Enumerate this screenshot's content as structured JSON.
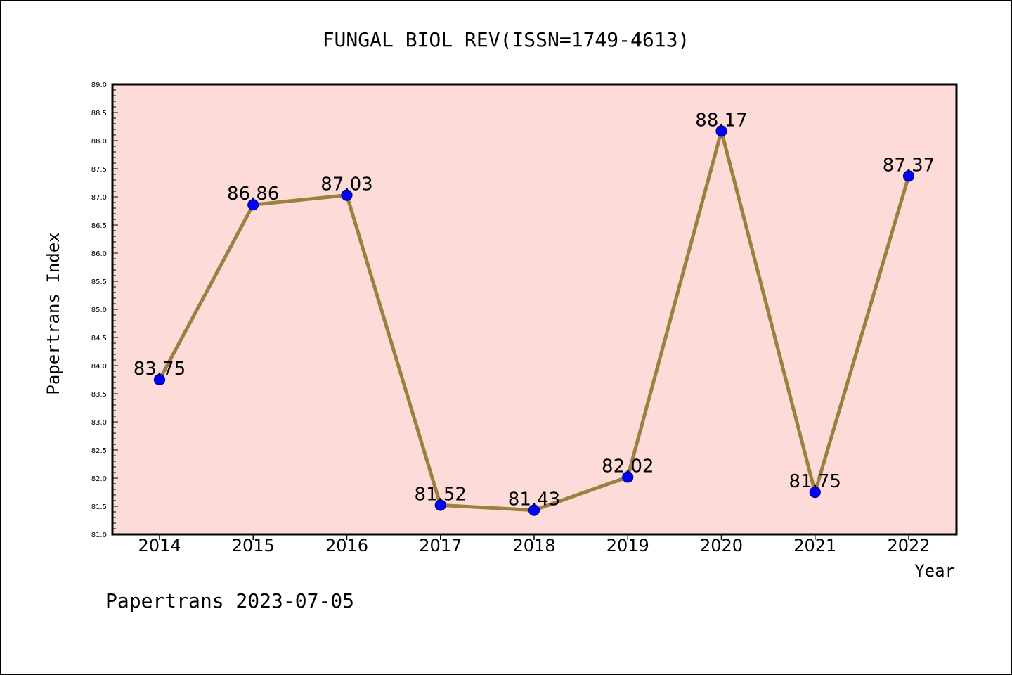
{
  "chart_data": {
    "type": "line",
    "title": "FUNGAL BIOL REV(ISSN=1749-4613)",
    "xlabel": "Year",
    "ylabel": "Papertrans Index",
    "categories": [
      "2014",
      "2015",
      "2016",
      "2017",
      "2018",
      "2019",
      "2020",
      "2021",
      "2022"
    ],
    "values": [
      83.75,
      86.86,
      87.03,
      81.52,
      81.43,
      82.02,
      88.17,
      81.75,
      87.37
    ],
    "data_labels": [
      "83.75",
      "86.86",
      "87.03",
      "81.52",
      "81.43",
      "82.02",
      "88.17",
      "81.75",
      "87.37"
    ],
    "ylim": [
      81.0,
      89.0
    ],
    "y_ticks": [
      "81.0",
      "81.5",
      "82.0",
      "82.5",
      "83.0",
      "83.5",
      "84.0",
      "84.5",
      "85.0",
      "85.5",
      "86.0",
      "86.5",
      "87.0",
      "87.5",
      "88.0",
      "88.5",
      "89.0"
    ],
    "grid": false,
    "legend": "none",
    "footer": "Papertrans 2023-07-05",
    "colors": {
      "plot_background": "#fddbd8",
      "line": "#9b8040",
      "marker": "#0000ff",
      "marker_edge": "#000080",
      "text": "#000000"
    }
  }
}
